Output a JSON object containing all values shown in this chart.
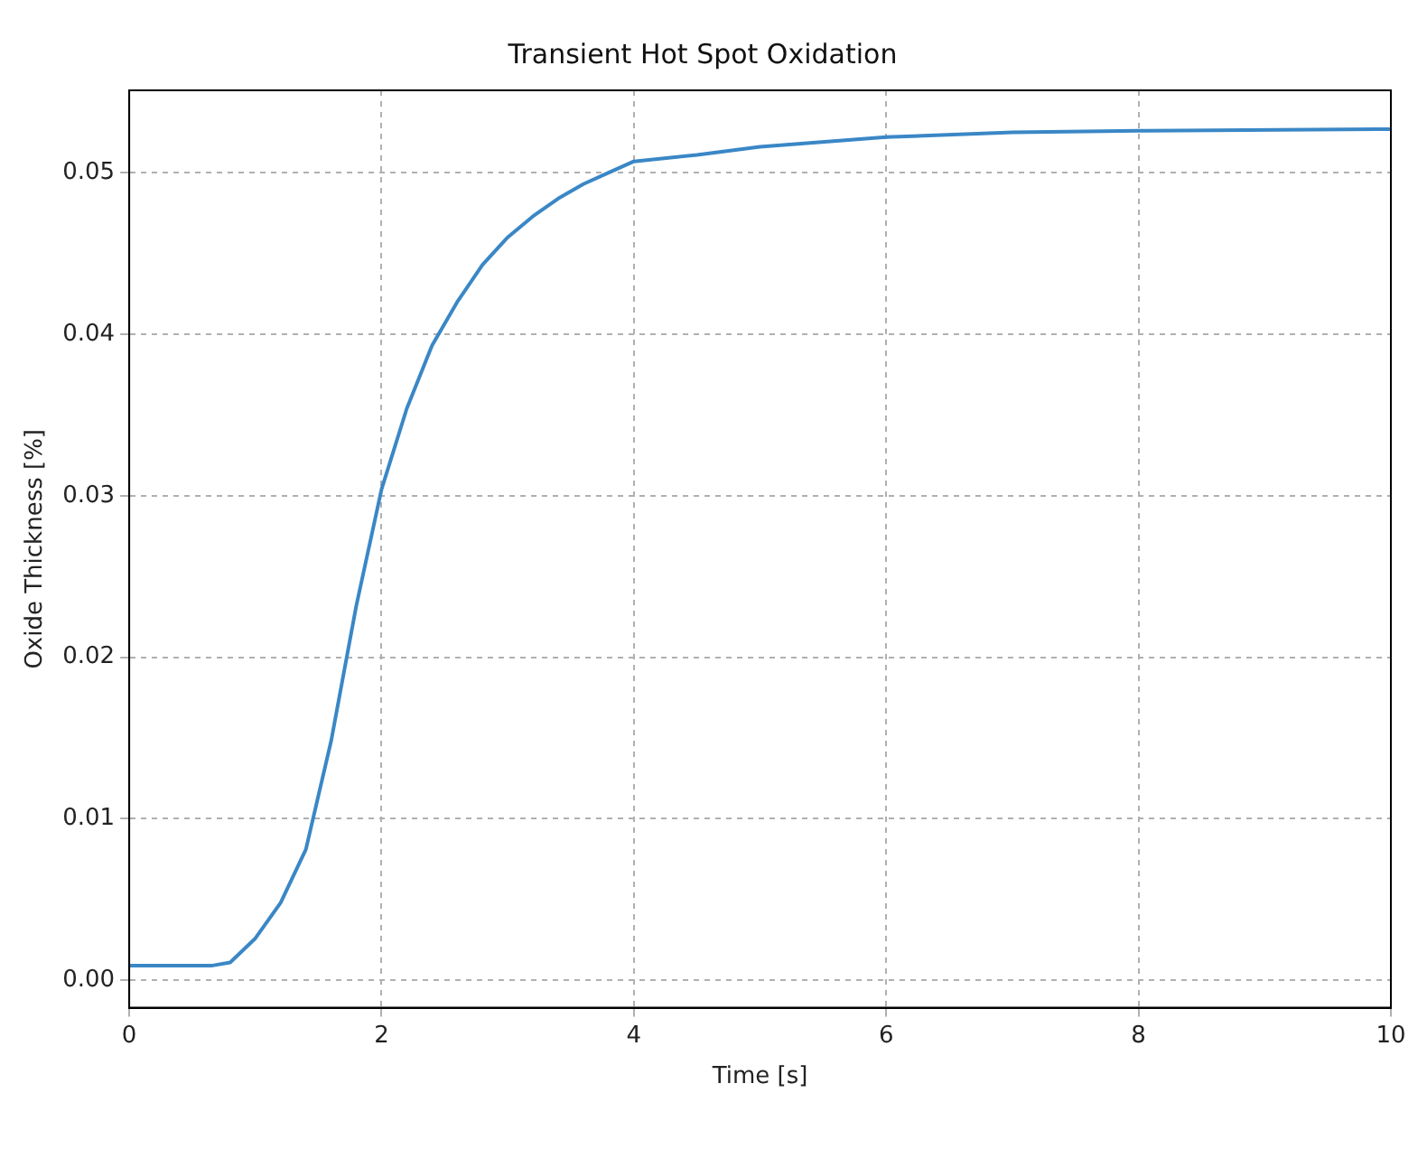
{
  "chart_data": {
    "type": "line",
    "title": "Transient Hot Spot Oxidation",
    "xlabel": "Time [s]",
    "ylabel": "Oxide Thickness [%]",
    "xlim": [
      0,
      10
    ],
    "xticks": [
      0,
      2,
      4,
      6,
      8,
      10
    ],
    "ylim": [
      -0.0017,
      0.0551
    ],
    "yticks": [
      {
        "value": 0,
        "label": "0.00"
      },
      0.01,
      0.02,
      0.03,
      0.04,
      0.05
    ],
    "grid": true,
    "marker": "none",
    "line_style": "solid",
    "series": [
      {
        "color": "#3a87c6",
        "x": [
          0,
          0.65,
          0.8,
          1.0,
          1.2,
          1.4,
          1.6,
          1.8,
          2.0,
          2.2,
          2.4,
          2.6,
          2.8,
          3.0,
          3.2,
          3.4,
          3.6,
          3.8,
          4.0,
          4.5,
          5,
          6,
          7,
          8,
          10
        ],
        "values": [
          0.0009,
          0.0009,
          0.0011,
          0.0026,
          0.0048,
          0.0081,
          0.0148,
          0.0232,
          0.0304,
          0.0354,
          0.0393,
          0.042,
          0.0443,
          0.046,
          0.0473,
          0.0484,
          0.0493,
          0.05,
          0.0507,
          0.0511,
          0.0516,
          0.0522,
          0.0525,
          0.0526,
          0.0527
        ]
      }
    ]
  }
}
